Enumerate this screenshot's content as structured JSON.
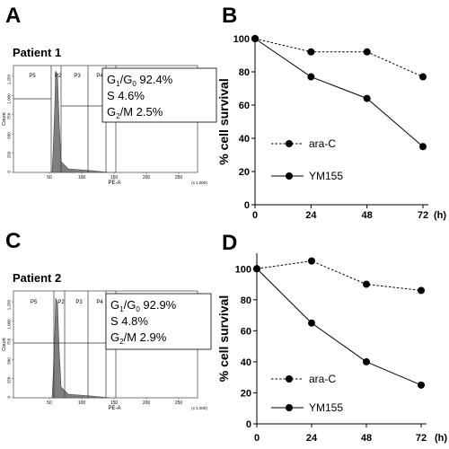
{
  "panels": {
    "A": {
      "letter": "A",
      "patient": "Patient 1"
    },
    "B": {
      "letter": "B"
    },
    "C": {
      "letter": "C",
      "patient": "Patient 2"
    },
    "D": {
      "letter": "D"
    }
  },
  "colors": {
    "histogram_fill": "#7f7f7f",
    "line": "#000000",
    "marker": "#000000"
  },
  "chart_data": [
    {
      "panel": "A",
      "type": "histogram",
      "xlabel": "PE-A",
      "ylabel": "Count",
      "x_unit_note": "(x 1,000)",
      "xticks": [
        "50",
        "100",
        "150",
        "200",
        "250"
      ],
      "yticks": [
        "0",
        "250",
        "500",
        "750",
        "1,000",
        "1,250"
      ],
      "gates": [
        "P5",
        "P2",
        "P3",
        "P4"
      ],
      "stats": [
        {
          "main": "G",
          "sub": "1",
          "mid": "/G",
          "sub2": "0",
          "val": " 92.4%"
        },
        {
          "main": "S 4.6%"
        },
        {
          "main": "G",
          "sub": "2",
          "mid": "/M 2.5%"
        }
      ]
    },
    {
      "panel": "B",
      "type": "line",
      "ylabel": "% cell survival",
      "xticks": [
        0,
        24,
        48,
        72
      ],
      "x_unit": "(h)",
      "ylim": [
        0,
        100
      ],
      "yticks": [
        0,
        20,
        40,
        60,
        80,
        100
      ],
      "series": [
        {
          "name": "ara-C",
          "style": "dashed",
          "x": [
            0,
            24,
            48,
            72
          ],
          "y": [
            100,
            92,
            92,
            77
          ]
        },
        {
          "name": "YM155",
          "style": "solid",
          "x": [
            0,
            24,
            48,
            72
          ],
          "y": [
            100,
            77,
            64,
            35
          ]
        }
      ]
    },
    {
      "panel": "C",
      "type": "histogram",
      "xlabel": "PE-A",
      "ylabel": "Count",
      "x_unit_note": "(x 1,000)",
      "xticks": [
        "50",
        "100",
        "150",
        "200",
        "250"
      ],
      "yticks": [
        "0",
        "250",
        "500",
        "750",
        "1,000",
        "1,250"
      ],
      "gates": [
        "P5",
        "P2",
        "P3",
        "P4"
      ],
      "stats": [
        {
          "main": "G",
          "sub": "1",
          "mid": "/G",
          "sub2": "0",
          "val": " 92.9%"
        },
        {
          "main": "S 4.8%"
        },
        {
          "main": "G",
          "sub": "2",
          "mid": "/M 2.9%"
        }
      ]
    },
    {
      "panel": "D",
      "type": "line",
      "ylabel": "% cell survival",
      "xticks": [
        0,
        24,
        48,
        72
      ],
      "x_unit": "(h)",
      "ylim": [
        0,
        110
      ],
      "yticks": [
        0,
        20,
        40,
        60,
        80,
        100
      ],
      "series": [
        {
          "name": "ara-C",
          "style": "dashed",
          "x": [
            0,
            24,
            48,
            72
          ],
          "y": [
            100,
            105,
            90,
            86
          ]
        },
        {
          "name": "YM155",
          "style": "solid",
          "x": [
            0,
            24,
            48,
            72
          ],
          "y": [
            100,
            65,
            40,
            25
          ]
        }
      ]
    }
  ]
}
